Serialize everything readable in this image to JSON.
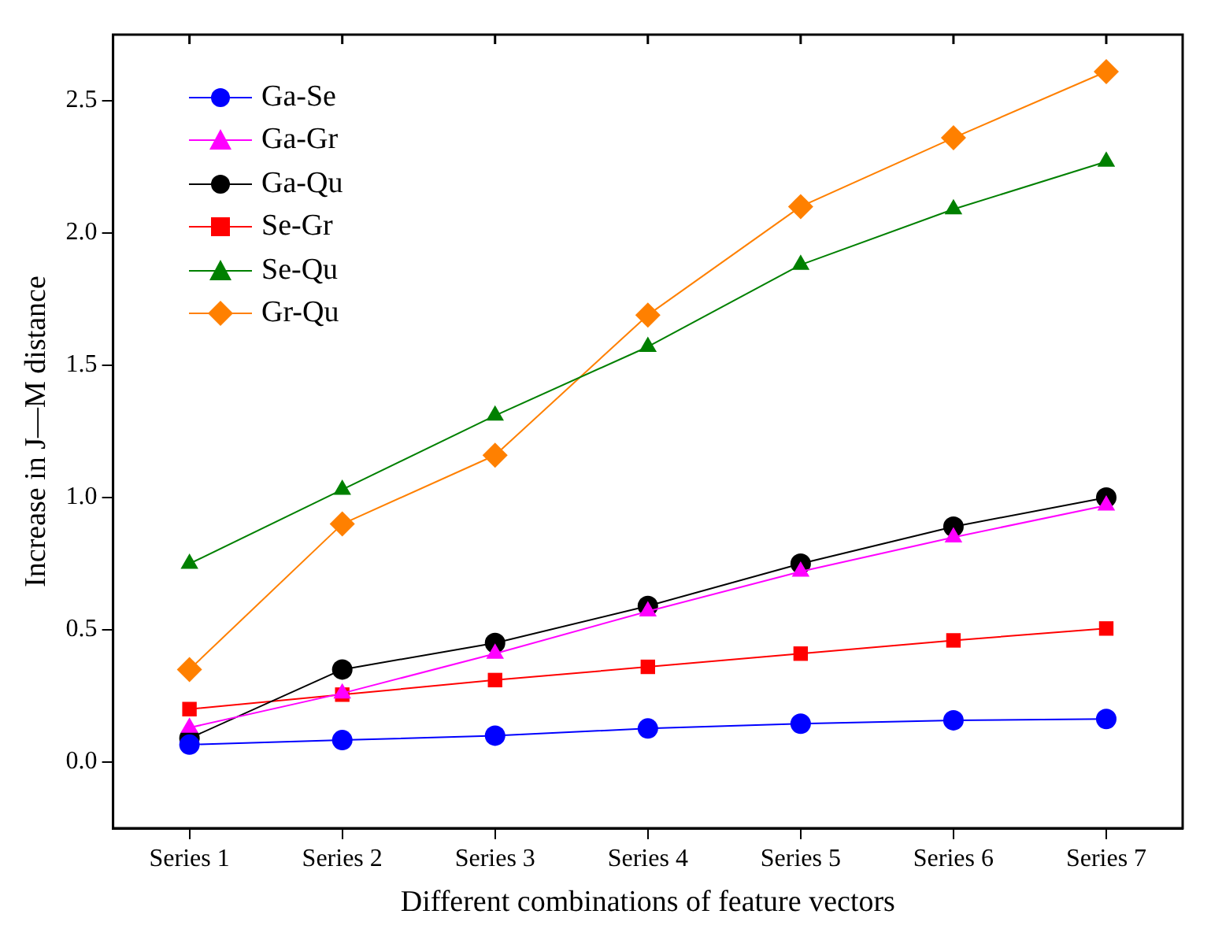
{
  "chart_data": {
    "type": "line",
    "xlabel": "Different combinations of feature vectors",
    "ylabel": "Increase in J—M distance",
    "categories": [
      "Series 1",
      "Series 2",
      "Series 3",
      "Series 4",
      "Series 5",
      "Series 6",
      "Series 7"
    ],
    "ylim": [
      -0.25,
      2.75
    ],
    "yticks": [
      {
        "value": 0,
        "label": "0.0"
      },
      0.5,
      {
        "value": 1,
        "label": "1.0"
      },
      1.5,
      {
        "value": 2,
        "label": "2.0"
      },
      2.5
    ],
    "grid": false,
    "legend": "top left",
    "line_style": "solid",
    "series": [
      {
        "name": "Ga-Se",
        "color": "#0000ff",
        "marker": "circle",
        "values": [
          0.066,
          0.083,
          0.1,
          0.127,
          0.145,
          0.158,
          0.163
        ]
      },
      {
        "name": "Ga-Gr",
        "color": "#ff00ff",
        "marker": "triangle",
        "values": [
          0.13,
          0.26,
          0.41,
          0.57,
          0.72,
          0.85,
          0.97
        ]
      },
      {
        "name": "Ga-Qu",
        "color": "#000000",
        "marker": "circle",
        "values": [
          0.09,
          0.35,
          0.45,
          0.59,
          0.75,
          0.89,
          1.0
        ]
      },
      {
        "name": "Se-Gr",
        "color": "#ff0000",
        "marker": "square",
        "values": [
          0.2,
          0.255,
          0.31,
          0.36,
          0.41,
          0.46,
          0.505
        ]
      },
      {
        "name": "Se-Qu",
        "color": "#008000",
        "marker": "triangle",
        "values": [
          0.75,
          1.03,
          1.31,
          1.57,
          1.88,
          2.09,
          2.27
        ]
      },
      {
        "name": "Gr-Qu",
        "color": "#ff8000",
        "marker": "diamond",
        "values": [
          0.35,
          0.9,
          1.16,
          1.69,
          2.1,
          2.36,
          2.61
        ]
      }
    ]
  }
}
